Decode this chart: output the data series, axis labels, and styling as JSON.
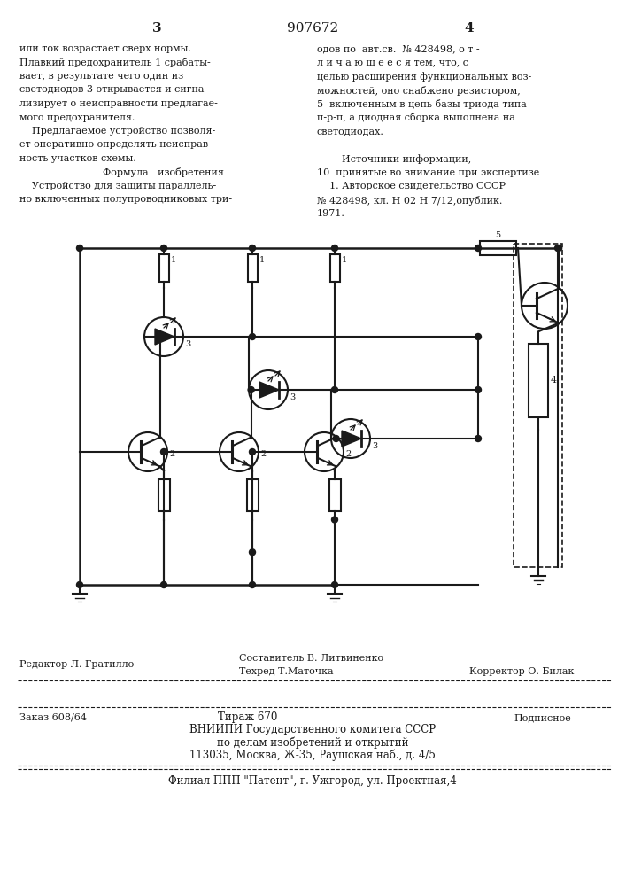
{
  "page_color": "#ffffff",
  "text_color": "#1a1a1a",
  "line_color": "#1a1a1a",
  "header_num_left": "3",
  "header_num_center": "907672",
  "header_num_right": "4",
  "top_text_left": [
    "или ток возрастает сверх нормы.",
    "Плавкий предохранитель 1 срабаты-",
    "вает, в результате чего один из",
    "светодиодов 3 открывается и сигна-",
    "лизирует о неисправности предлагае-",
    "мого предохранителя.",
    "    Предлагаемое устройство позволя-",
    "ет оперативно определять неисправ-",
    "ность участков схемы.",
    "    Формула   изобретения",
    "    Устройство для защиты параллель-",
    "но включенных полупроводниковых три-"
  ],
  "top_text_right": [
    "одов по  авт.св.  № 428498, о т -",
    "л и ч а ю щ е е с я тем, что, с",
    "целью расширения функциональных воз-",
    "можностей, оно снабжено резистором,",
    "5  включенным в цепь базы триода типа",
    "п-р-п, а диодная сборка выполнена на",
    "светодиодах.",
    "",
    "        Источники информации,",
    "10  принятые во внимание при экспертизе",
    "    1. Авторское свидетельство СССР",
    "№ 428498, кл. Н 02 Н 7/12,опублик.",
    "1971."
  ],
  "bottom_editor": "Редактор Л. Гратилло",
  "bottom_composer": "Составитель В. Литвиненко",
  "bottom_tech": "Техред Т.Маточка",
  "bottom_corrector": "Корректор О. Билак",
  "bottom_order": "Заказ 608/64",
  "bottom_tirazh": "Тираж 670",
  "bottom_podpisnoe": "Подписное",
  "bottom_vnipi": "ВНИИПИ Государственного комитета СССР",
  "bottom_po_delam": "по делам изобретений и открытий",
  "bottom_address": "113035, Москва, Ж-35, Раушская наб., д. 4/5",
  "bottom_filial": "Филиал ППП \"Патент\", г. Ужгород, ул. Проектная,4"
}
